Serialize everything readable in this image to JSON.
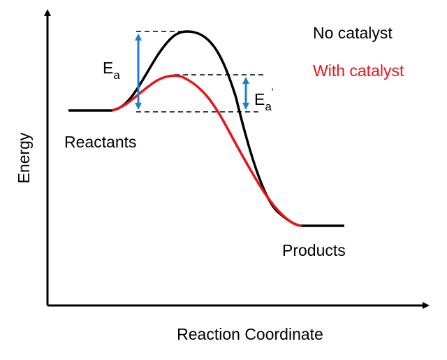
{
  "axes": {
    "y_label": "Energy",
    "x_label": "Reaction Coordinate"
  },
  "legend": [
    {
      "label": "No catalyst",
      "color": "#000000"
    },
    {
      "label": "With catalyst",
      "color": "#e8141b"
    }
  ],
  "labels": {
    "reactants": "Reactants",
    "products": "Products"
  },
  "activation_energy": {
    "symbol": "E",
    "subscript": "a"
  },
  "activation_energy_catalyzed": {
    "symbol": "E",
    "subscript": "a",
    "prime": "'"
  }
}
